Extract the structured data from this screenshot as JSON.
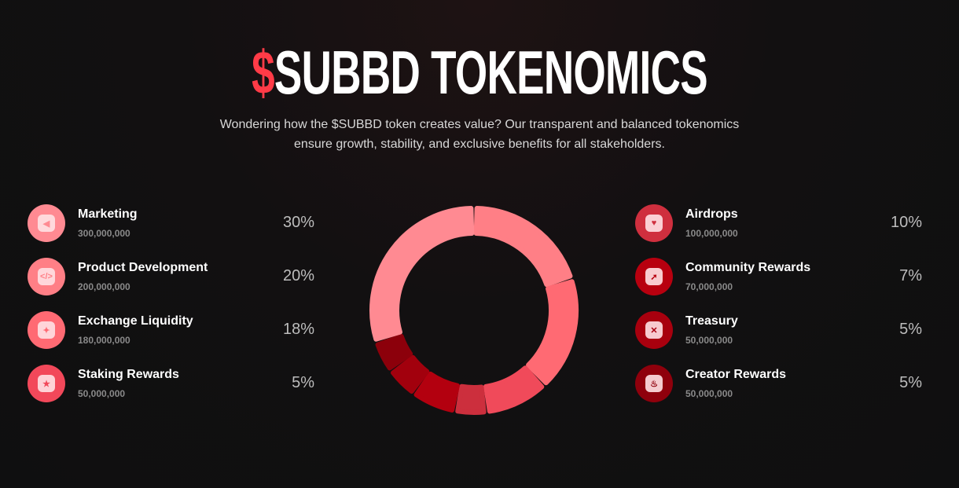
{
  "header": {
    "title_symbol": "$",
    "title_text": "SUBBD TOKENOMICS",
    "subtitle": "Wondering how the $SUBBD token creates value? Our transparent and balanced tokenomics ensure growth, stability, and exclusive benefits for all stakeholders."
  },
  "left_items": [
    {
      "name": "Marketing",
      "amount": "300,000,000",
      "percent": "30%",
      "icon": "megaphone-icon",
      "color": "#ff8a92",
      "glyph": "◀"
    },
    {
      "name": "Product Development",
      "amount": "200,000,000",
      "percent": "20%",
      "icon": "code-icon",
      "color": "#ff7f86",
      "glyph": "</>"
    },
    {
      "name": "Exchange Liquidity",
      "amount": "180,000,000",
      "percent": "18%",
      "icon": "drops-icon",
      "color": "#ff6a73",
      "glyph": "✦"
    },
    {
      "name": "Staking Rewards",
      "amount": "50,000,000",
      "percent": "5%",
      "icon": "star-coin-icon",
      "color": "#f2485a",
      "glyph": "★"
    }
  ],
  "right_items": [
    {
      "name": "Airdrops",
      "amount": "100,000,000",
      "percent": "10%",
      "icon": "gift-heart-icon",
      "color": "#cf2f3e",
      "glyph": "♥"
    },
    {
      "name": "Community Rewards",
      "amount": "70,000,000",
      "percent": "7%",
      "icon": "rocket-icon",
      "color": "#b8000f",
      "glyph": "➚"
    },
    {
      "name": "Treasury",
      "amount": "50,000,000",
      "percent": "5%",
      "icon": "vault-icon",
      "color": "#a8000e",
      "glyph": "✕"
    },
    {
      "name": "Creator Rewards",
      "amount": "50,000,000",
      "percent": "5%",
      "icon": "flame-icon",
      "color": "#8f000c",
      "glyph": "♨"
    }
  ],
  "chart_data": {
    "type": "pie",
    "donut": true,
    "categories": [
      "Product Development",
      "Exchange Liquidity",
      "Airdrops",
      "Staking Rewards",
      "Community Rewards",
      "Treasury",
      "Creator Rewards",
      "Marketing"
    ],
    "values": [
      20,
      18,
      10,
      5,
      7,
      5,
      5,
      30
    ],
    "colors": [
      "#ff7f86",
      "#ff6a73",
      "#f04a5a",
      "#cc2f3d",
      "#b3000f",
      "#a2000d",
      "#8c000b",
      "#ff8a92"
    ]
  }
}
